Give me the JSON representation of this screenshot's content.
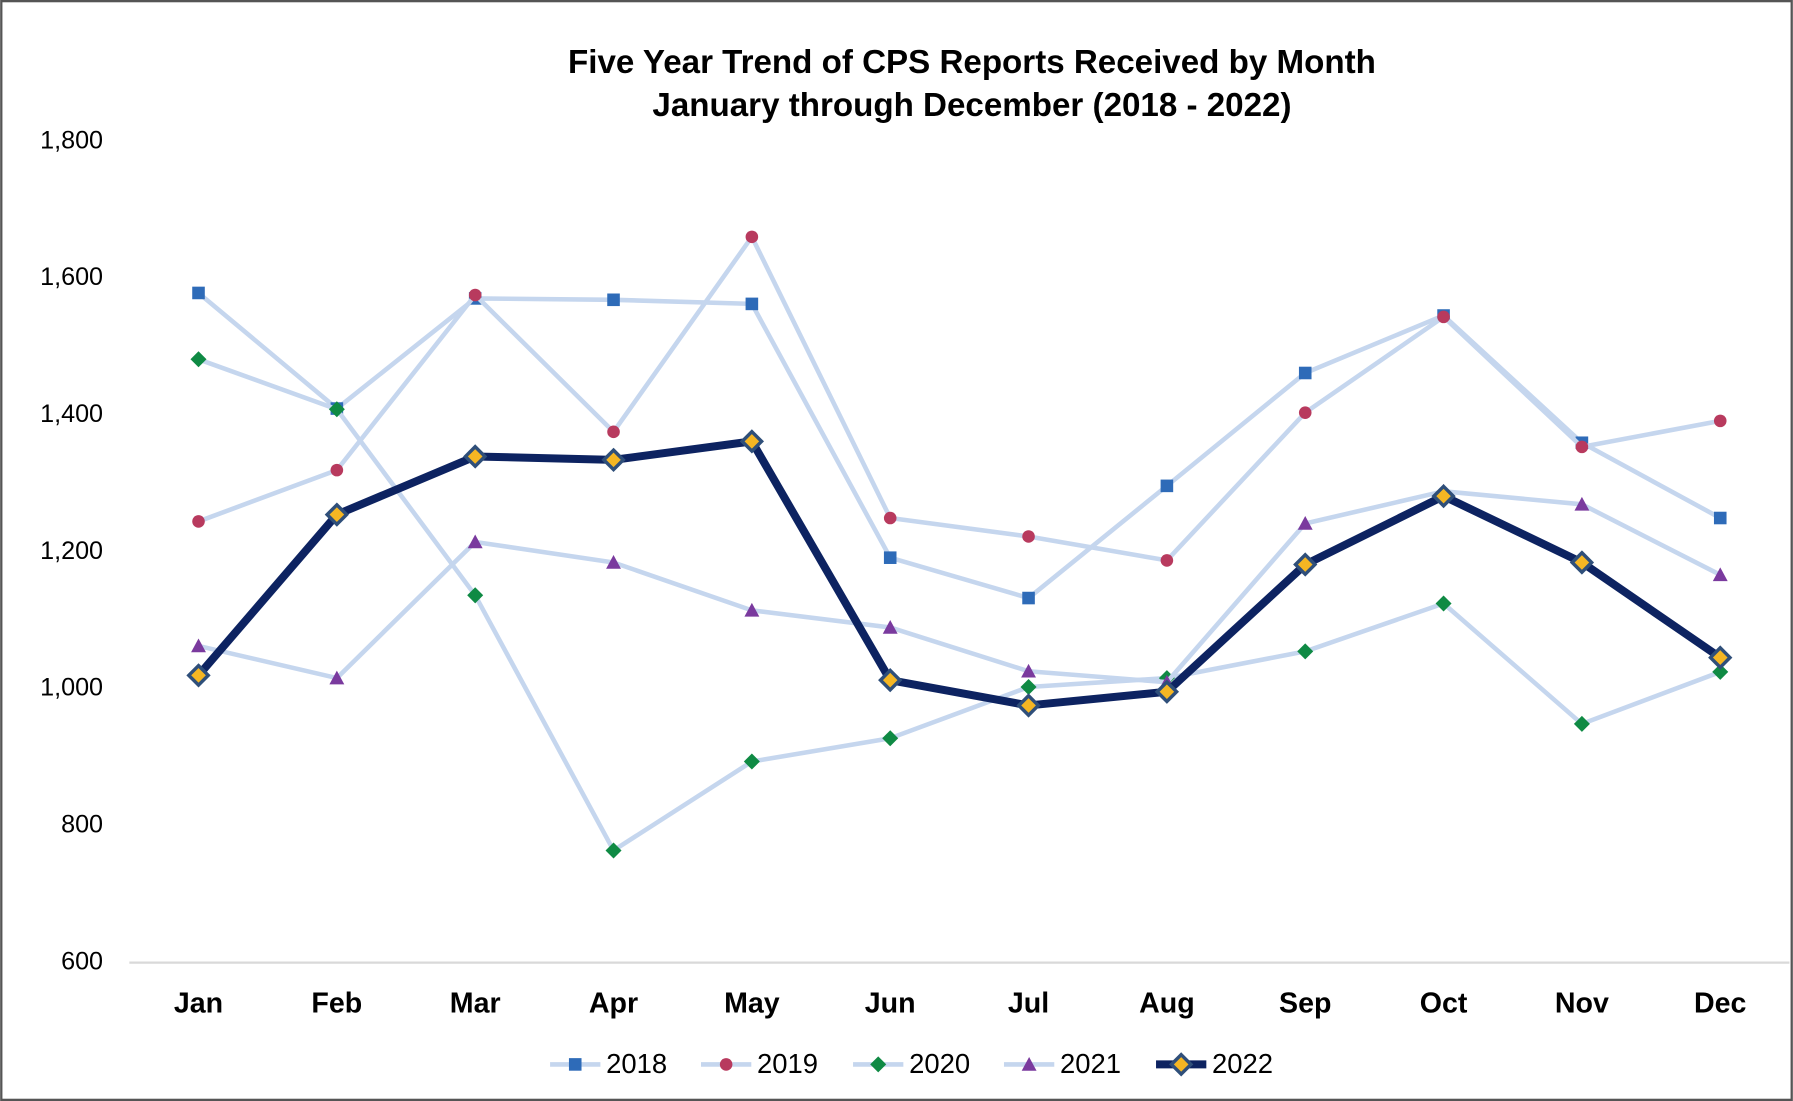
{
  "chart_data": {
    "type": "line",
    "title": "Five Year Trend of CPS Reports Received by Month",
    "subtitle": "January through December (2018 - 2022)",
    "categories": [
      "Jan",
      "Feb",
      "Mar",
      "Apr",
      "May",
      "Jun",
      "Jul",
      "Aug",
      "Sep",
      "Oct",
      "Nov",
      "Dec"
    ],
    "series": [
      {
        "name": "2018",
        "color": "#2e6bb8",
        "line_color": "#c5d6ee",
        "marker": "square",
        "values": [
          1579,
          1410,
          1571,
          1569,
          1563,
          1192,
          1133,
          1297,
          1462,
          1546,
          1360,
          1250
        ]
      },
      {
        "name": "2019",
        "color": "#b83a5e",
        "line_color": "#c5d6ee",
        "marker": "circle",
        "values": [
          1245,
          1320,
          1576,
          1376,
          1661,
          1250,
          1223,
          1188,
          1404,
          1544,
          1354,
          1392
        ]
      },
      {
        "name": "2020",
        "color": "#0f8a44",
        "line_color": "#c5d6ee",
        "marker": "diamond",
        "values": [
          1482,
          1409,
          1137,
          764,
          894,
          928,
          1003,
          1016,
          1055,
          1125,
          949,
          1025
        ]
      },
      {
        "name": "2021",
        "color": "#7a3a9e",
        "line_color": "#c5d6ee",
        "marker": "triangle",
        "values": [
          1063,
          1016,
          1215,
          1185,
          1115,
          1090,
          1026,
          1010,
          1242,
          1289,
          1270,
          1167
        ]
      },
      {
        "name": "2022",
        "color": "#f5b623",
        "line_color": "#0d2361",
        "marker": "diamond",
        "values": [
          1020,
          1255,
          1340,
          1335,
          1362,
          1013,
          976,
          996,
          1182,
          1282,
          1185,
          1046
        ]
      }
    ],
    "ylim": [
      600,
      1800
    ],
    "yticks": [
      {
        "value": 600,
        "label": "600"
      },
      {
        "value": 800,
        "label": "800"
      },
      {
        "value": 1000,
        "label": "1,000"
      },
      {
        "value": 1200,
        "label": "1,200"
      },
      {
        "value": 1400,
        "label": "1,400"
      },
      {
        "value": 1600,
        "label": "1,600"
      },
      {
        "value": 1800,
        "label": "1,800"
      }
    ],
    "grid": false,
    "legend": "bottom"
  }
}
